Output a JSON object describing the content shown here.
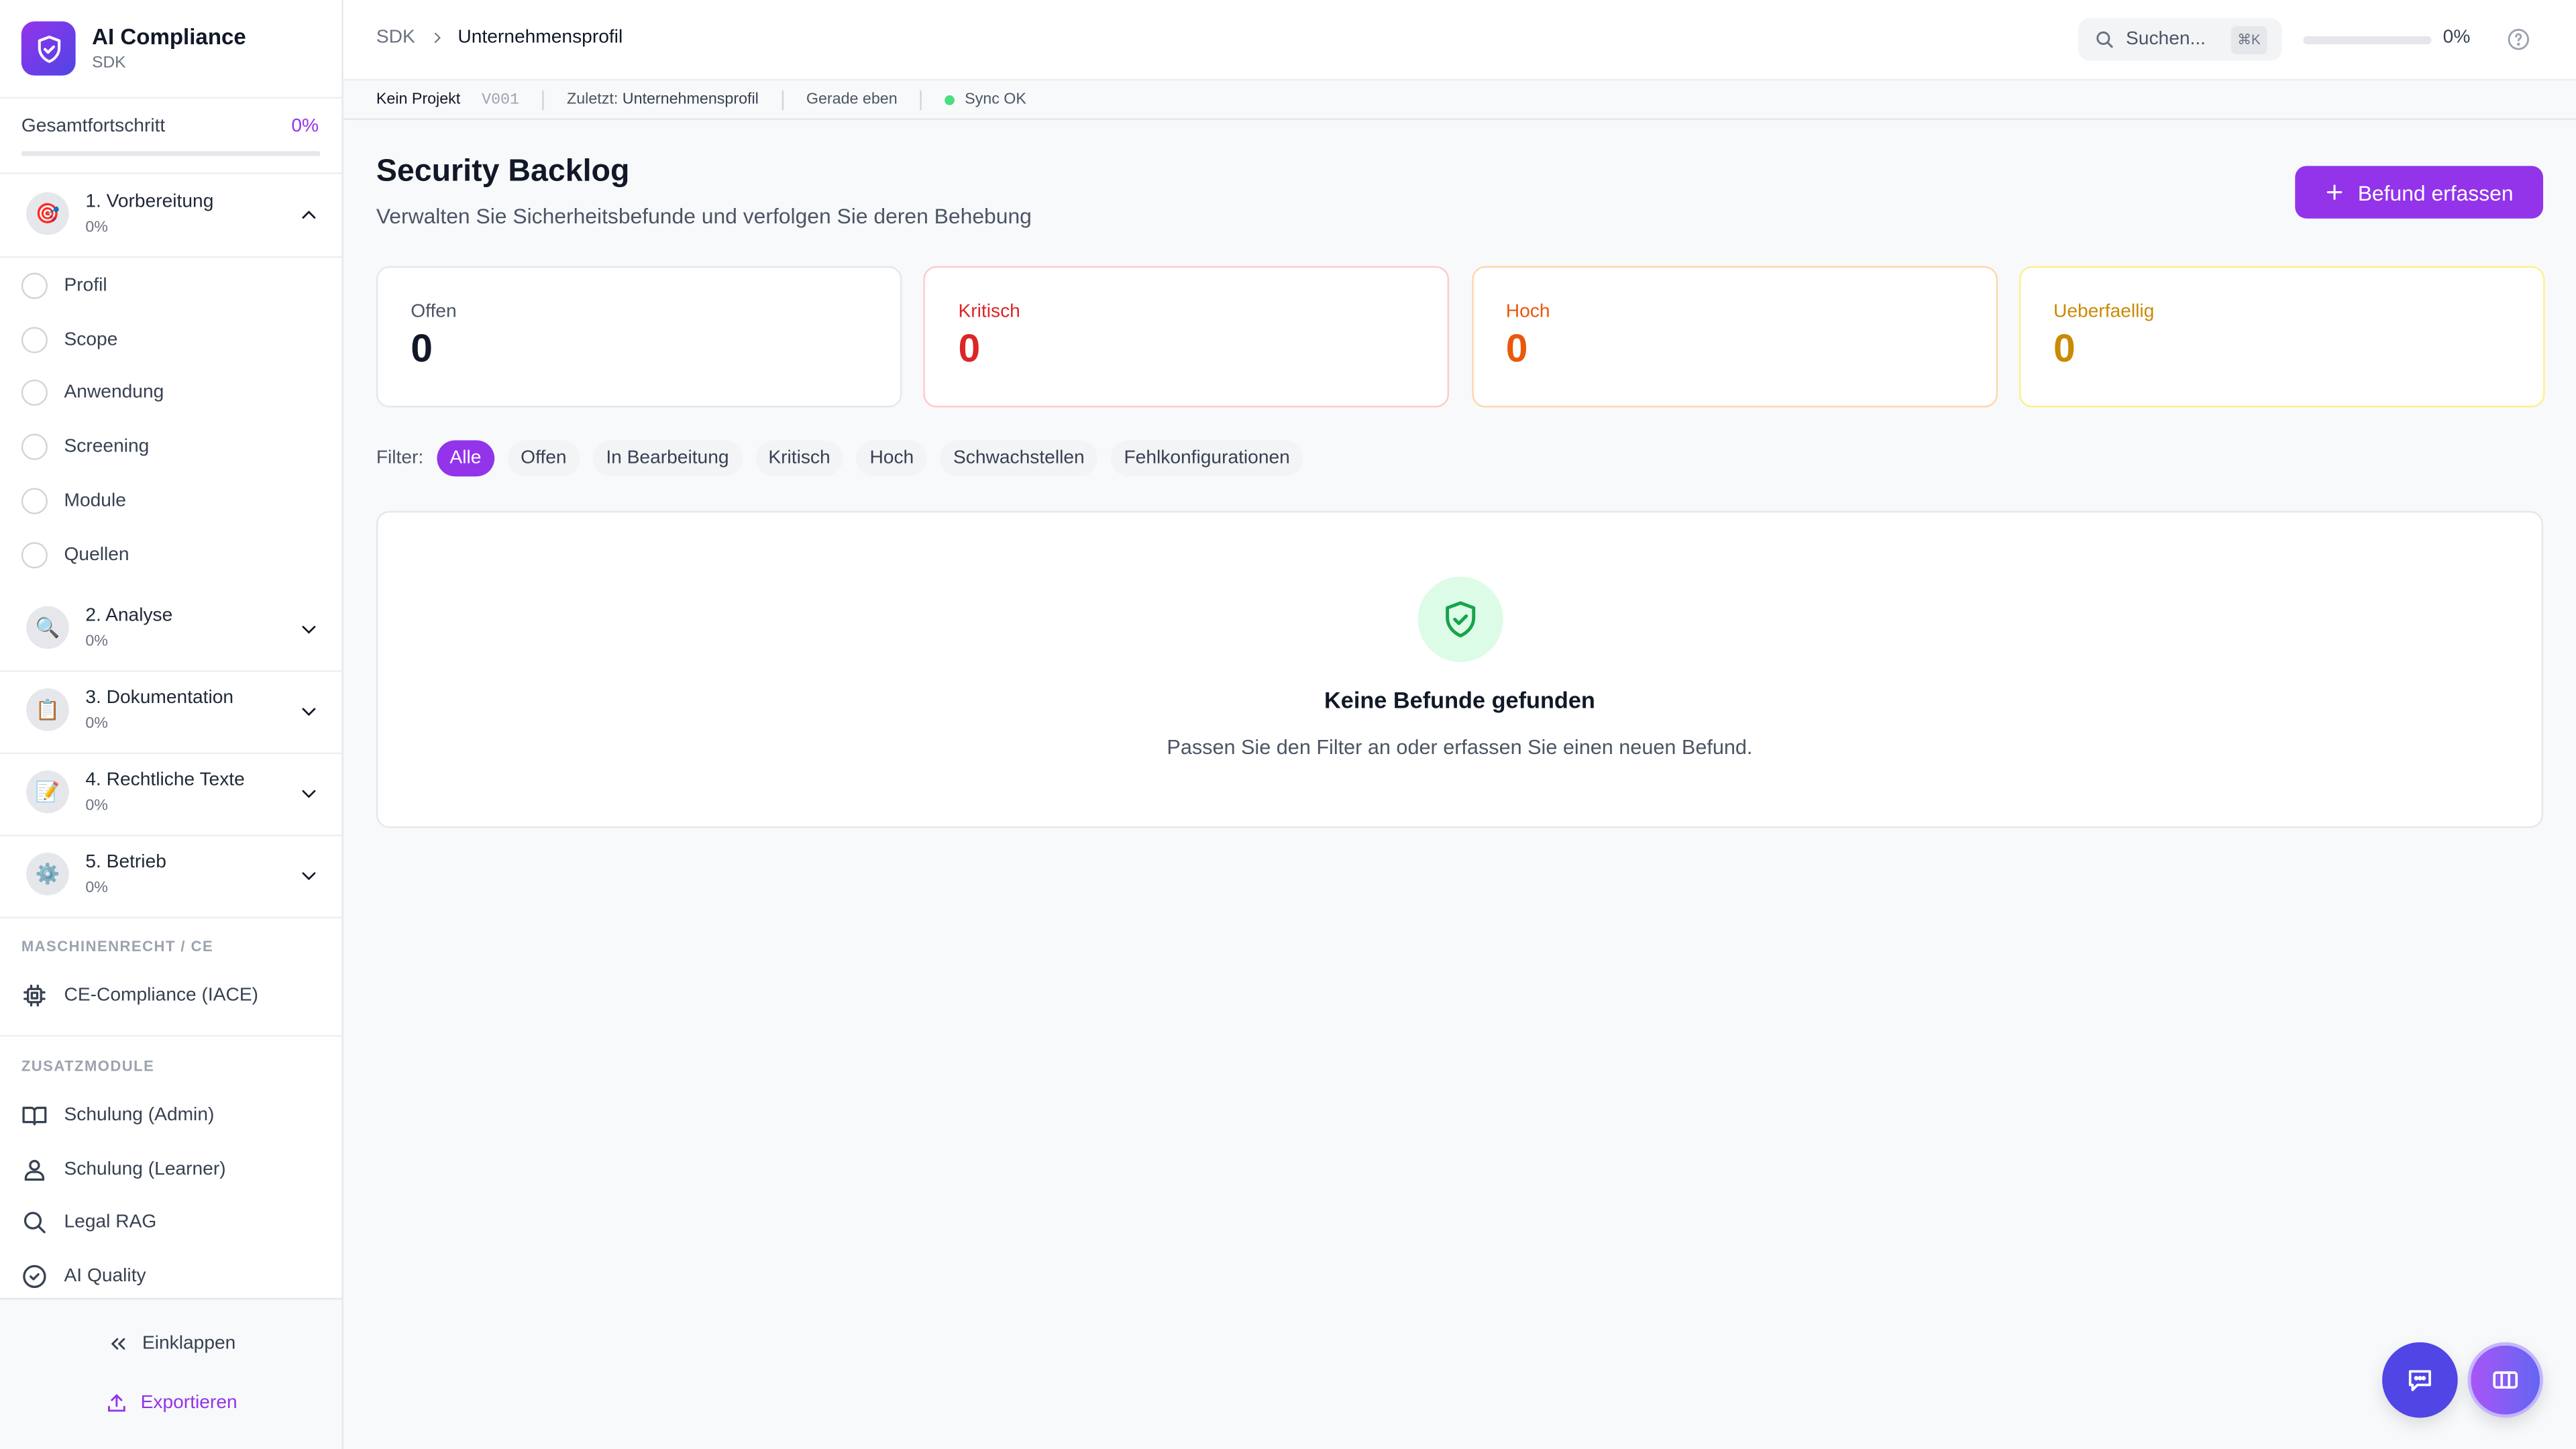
{
  "app": {
    "title": "AI Compliance",
    "subtitle": "SDK"
  },
  "sidebar": {
    "progress": {
      "label": "Gesamtfortschritt",
      "value": "0%",
      "percent": 0
    },
    "sections": [
      {
        "label": "1. Vorbereitung",
        "progress": "0%",
        "icon": "target-emoji",
        "glyph": "🎯",
        "expanded": true
      },
      {
        "label": "2. Analyse",
        "progress": "0%",
        "icon": "magnifier-emoji",
        "glyph": "🔍"
      },
      {
        "label": "3. Dokumentation",
        "progress": "0%",
        "icon": "clipboard-emoji",
        "glyph": "📋"
      },
      {
        "label": "4. Rechtliche Texte",
        "progress": "0%",
        "icon": "memo-emoji",
        "glyph": "📝"
      },
      {
        "label": "5. Betrieb",
        "progress": "0%",
        "icon": "gear-emoji",
        "glyph": "⚙️"
      }
    ],
    "sub_items": [
      "Profil",
      "Scope",
      "Anwendung",
      "Screening",
      "Module",
      "Quellen"
    ],
    "groups": [
      {
        "label": "MASCHINENRECHT / CE",
        "items": [
          {
            "label": "CE-Compliance (IACE)",
            "icon": "chip-icon"
          }
        ]
      },
      {
        "label": "ZUSATZMODULE",
        "items": [
          {
            "label": "Schulung (Admin)",
            "icon": "book-icon"
          },
          {
            "label": "Schulung (Learner)",
            "icon": "user-icon"
          },
          {
            "label": "Legal RAG",
            "icon": "search-icon"
          },
          {
            "label": "AI Quality",
            "icon": "check-circle-icon"
          }
        ]
      }
    ],
    "collapse": "Einklappen",
    "export": "Exportieren"
  },
  "header": {
    "breadcrumb": [
      "SDK",
      "Unternehmensprofil"
    ],
    "search_placeholder": "Suchen...",
    "shortcut": "⌘K",
    "progress": "0%",
    "progress_percent": 0
  },
  "statusbar": {
    "project": "Kein Projekt",
    "version": "V001",
    "last_label": "Zuletzt:",
    "last_value": "Unternehmensprofil",
    "time": "Gerade eben",
    "sync": "Sync OK"
  },
  "page": {
    "title": "Security Backlog",
    "subtitle": "Verwalten Sie Sicherheitsbefunde und verfolgen Sie deren Behebung",
    "add_button": "Befund erfassen"
  },
  "stats": [
    {
      "label": "Offen",
      "value": "0",
      "color": "#111827",
      "label_color": "#4b5563",
      "border": "#e5e7eb"
    },
    {
      "label": "Kritisch",
      "value": "0",
      "color": "#dc2626",
      "label_color": "#dc2626",
      "border": "#fecaca"
    },
    {
      "label": "Hoch",
      "value": "0",
      "color": "#ea580c",
      "label_color": "#ea580c",
      "border": "#fed7aa"
    },
    {
      "label": "Ueberfaellig",
      "value": "0",
      "color": "#ca8a04",
      "label_color": "#ca8a04",
      "border": "#fef08a"
    }
  ],
  "filters": {
    "label": "Filter:",
    "options": [
      "Alle",
      "Offen",
      "In Bearbeitung",
      "Kritisch",
      "Hoch",
      "Schwachstellen",
      "Fehlkonfigurationen"
    ],
    "selected": "Alle"
  },
  "empty": {
    "title": "Keine Befunde gefunden",
    "text": "Passen Sie den Filter an oder erfassen Sie einen neuen Befund."
  },
  "colors": {
    "accent": "#9333ea",
    "chat": "#4f46e5",
    "success": "#16a34a"
  }
}
